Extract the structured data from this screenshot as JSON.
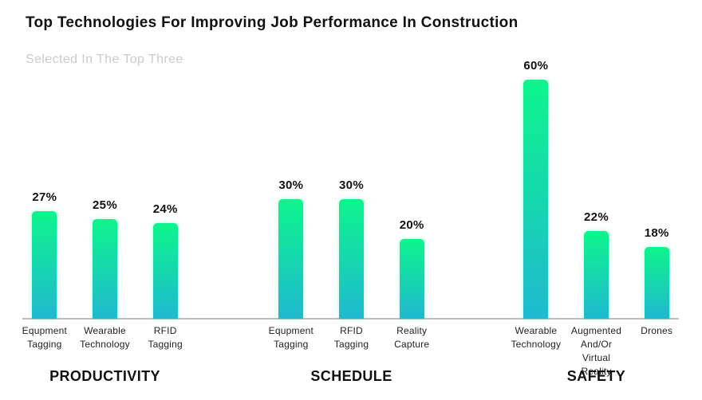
{
  "title": "Top Technologies For Improving Job Performance In Construction",
  "subtitle": "Selected In The Top Three",
  "colors": {
    "background": "#FFFFFF",
    "title_text": "#111111",
    "subtitle_text": "#C9CBCD",
    "bar_gradient_top": "#0DF58C",
    "bar_gradient_bottom": "#1FB9D0",
    "axis_line": "#B9BCC0",
    "value_label_text": "#111111",
    "category_label_text": "#222222",
    "group_label_text": "#111111"
  },
  "chart_data": {
    "type": "bar",
    "title": "Top Technologies For Improving Job Performance In Construction",
    "subtitle": "Selected In The Top Three",
    "unit": "%",
    "ylim": [
      0,
      62
    ],
    "grid": false,
    "legend": false,
    "value_labels_position": "above-bars",
    "groups": [
      {
        "label": "PRODUCTIVITY",
        "bars": [
          {
            "category": "Equpment Tagging",
            "label_lines": [
              "Equpment",
              "Tagging"
            ],
            "value": 27,
            "value_label": "27%"
          },
          {
            "category": "Wearable Technology",
            "label_lines": [
              "Wearable",
              "Technology"
            ],
            "value": 25,
            "value_label": "25%"
          },
          {
            "category": "RFID Tagging",
            "label_lines": [
              "RFID",
              "Tagging"
            ],
            "value": 24,
            "value_label": "24%"
          }
        ]
      },
      {
        "label": "SCHEDULE",
        "bars": [
          {
            "category": "Equpment Tagging",
            "label_lines": [
              "Equpment",
              "Tagging"
            ],
            "value": 30,
            "value_label": "30%"
          },
          {
            "category": "RFID Tagging",
            "label_lines": [
              "RFID",
              "Tagging"
            ],
            "value": 30,
            "value_label": "30%"
          },
          {
            "category": "Reality Capture",
            "label_lines": [
              "Reality",
              "Capture"
            ],
            "value": 20,
            "value_label": "20%"
          }
        ]
      },
      {
        "label": "SAFETY",
        "bars": [
          {
            "category": "Wearable Technology",
            "label_lines": [
              "Wearable",
              "Technology"
            ],
            "value": 60,
            "value_label": "60%"
          },
          {
            "category": "Augmented And/Or Virtual Reality",
            "label_lines": [
              "Augmented",
              "And/Or",
              "Virtual Reality"
            ],
            "value": 22,
            "value_label": "22%"
          },
          {
            "category": "Drones",
            "label_lines": [
              "Drones"
            ],
            "value": 18,
            "value_label": "18%"
          }
        ]
      }
    ]
  }
}
